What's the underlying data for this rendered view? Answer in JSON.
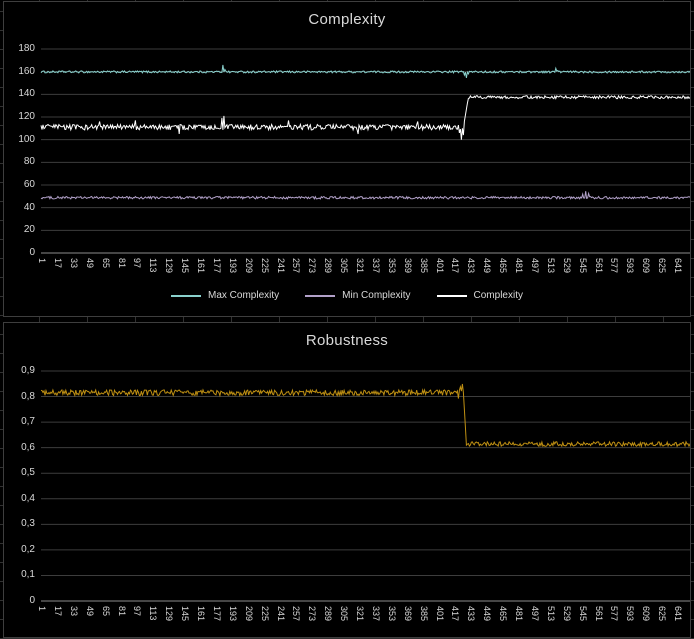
{
  "workbook": {
    "background_color": "#000000",
    "chart_border_color": "#3E3E3E",
    "gridline_color": "#3D3D3D",
    "axis_line_color": "#8C8C8C",
    "text_color": "#D9D9D9"
  },
  "chart_data": [
    {
      "type": "line",
      "title": "Complexity",
      "xlabel": "",
      "ylabel": "",
      "x_range": [
        1,
        656
      ],
      "ylim": [
        0,
        180
      ],
      "grid": true,
      "legend": true,
      "legend_position": "bottom",
      "y_tick_labels": [
        "0",
        "20",
        "40",
        "60",
        "80",
        "100",
        "120",
        "140",
        "160",
        "180"
      ],
      "x_tick_labels": [
        "1",
        "17",
        "33",
        "49",
        "65",
        "81",
        "97",
        "113",
        "129",
        "145",
        "161",
        "177",
        "193",
        "209",
        "225",
        "241",
        "257",
        "273",
        "289",
        "305",
        "321",
        "337",
        "353",
        "369",
        "385",
        "401",
        "417",
        "433",
        "449",
        "465",
        "481",
        "497",
        "513",
        "529",
        "545",
        "561",
        "577",
        "593",
        "609",
        "625",
        "641"
      ],
      "series": [
        {
          "name": "Max Complexity",
          "color": "#8AD1CD",
          "segments": [
            {
              "from": 1,
              "to": 656,
              "level": 159.8,
              "noise": 0.9
            }
          ],
          "events": [
            [
              184,
              166
            ],
            [
              186,
              162
            ],
            [
              427,
              157
            ],
            [
              429,
              154.5
            ],
            [
              431,
              158
            ],
            [
              519,
              163
            ],
            [
              521,
              161
            ]
          ]
        },
        {
          "name": "Min Complexity",
          "color": "#B2A1C9",
          "segments": [
            {
              "from": 1,
              "to": 656,
              "level": 48.8,
              "noise": 1.1
            }
          ],
          "events": [
            [
              546,
              52
            ],
            [
              549,
              54.5
            ],
            [
              552,
              52.5
            ]
          ]
        },
        {
          "name": "Complexity",
          "color": "#FFFFFF",
          "segments": [
            {
              "from": 1,
              "to": 426,
              "level": 111,
              "noise": 2.4
            },
            {
              "from": 431,
              "to": 656,
              "level": 137.5,
              "noise": 1.3
            }
          ],
          "events": [
            [
              60,
              116
            ],
            [
              96,
              117
            ],
            [
              140,
              105
            ],
            [
              183,
              119
            ],
            [
              185,
              121
            ],
            [
              250,
              117
            ],
            [
              320,
              105
            ],
            [
              380,
              116
            ],
            [
              422,
              106
            ],
            [
              424,
              100
            ],
            [
              426,
              104
            ]
          ]
        }
      ]
    },
    {
      "type": "line",
      "title": "Robustness",
      "xlabel": "",
      "ylabel": "",
      "x_range": [
        1,
        656
      ],
      "ylim": [
        0,
        0.9
      ],
      "grid": true,
      "legend": false,
      "legend_position": "none",
      "y_tick_labels": [
        "0",
        "0,1",
        "0,2",
        "0,3",
        "0,4",
        "0,5",
        "0,6",
        "0,7",
        "0,8",
        "0,9"
      ],
      "x_tick_labels": [
        "1",
        "17",
        "33",
        "49",
        "65",
        "81",
        "97",
        "113",
        "129",
        "145",
        "161",
        "177",
        "193",
        "209",
        "225",
        "241",
        "257",
        "273",
        "289",
        "305",
        "321",
        "337",
        "353",
        "369",
        "385",
        "401",
        "417",
        "433",
        "449",
        "465",
        "481",
        "497",
        "513",
        "529",
        "545",
        "561",
        "577",
        "593",
        "609",
        "625",
        "641"
      ],
      "series": [
        {
          "name": "Robustness",
          "color": "#BF9013",
          "segments": [
            {
              "from": 1,
              "to": 426,
              "level": 0.815,
              "noise": 0.011
            },
            {
              "from": 429,
              "to": 656,
              "level": 0.614,
              "noise": 0.009
            }
          ],
          "events": [
            [
              421,
              0.792
            ],
            [
              423,
              0.838
            ],
            [
              425,
              0.849
            ]
          ]
        }
      ]
    }
  ]
}
